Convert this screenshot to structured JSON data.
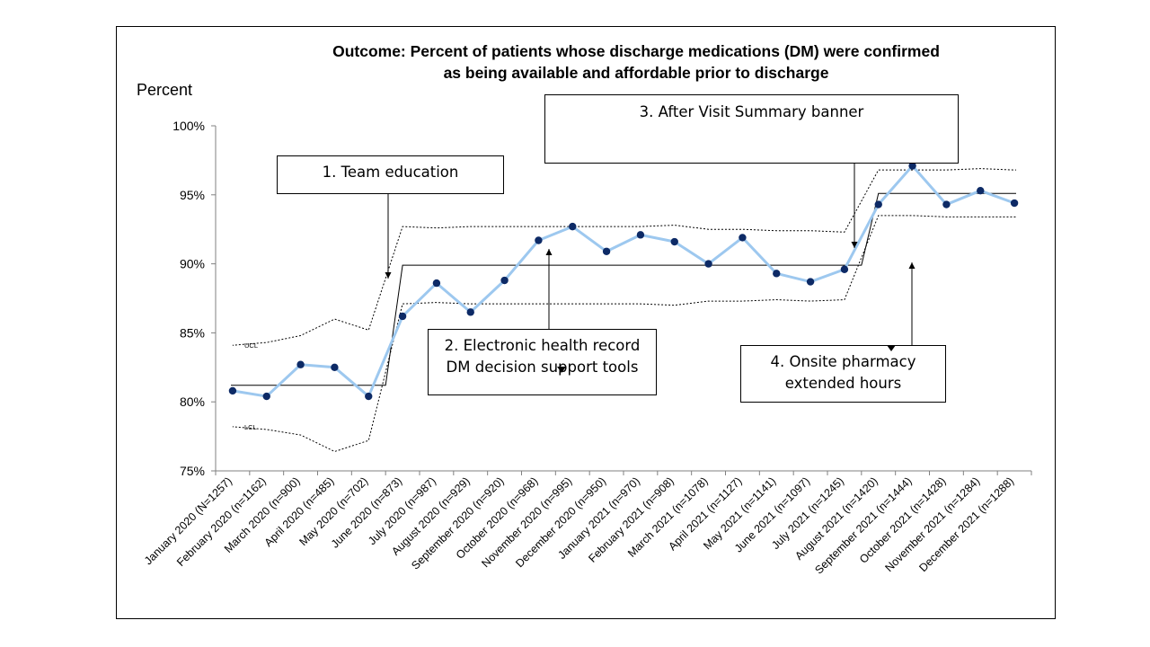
{
  "chart_data": {
    "type": "line",
    "title_lines": [
      "Outcome: Percent of patients whose discharge medications (DM) were confirmed",
      "as being available and affordable prior to discharge"
    ],
    "ylabel": "Percent",
    "xlabel": "",
    "ylim": [
      75,
      100
    ],
    "yticks": [
      "75%",
      "80%",
      "85%",
      "90%",
      "95%",
      "100%"
    ],
    "ytick_values": [
      75,
      80,
      85,
      90,
      95,
      100
    ],
    "grid": false,
    "categories": [
      "January 2020 (N=1257)",
      "February 2020 (n=1162)",
      "March 2020 (n=900)",
      "April 2020 (n=485)",
      "May 2020 (n=702)",
      "June 2020 (n=873)",
      "July 2020 (n=987)",
      "August 2020 (n=929)",
      "September 2020 (n=920)",
      "October 2020 (n=968)",
      "November 2020 (n=995)",
      "December 2020 (n=950)",
      "January 2021 (n=970)",
      "February 2021 (n=908)",
      "March 2021 (n=1078)",
      "April 2021 (n=1127)",
      "May 2021 (n=1141)",
      "June 2021 (n=1097)",
      "July 2021 (n=1245)",
      "August 2021 (n=1420)",
      "September 2021 (n=1444)",
      "October 2021 (n=1428)",
      "November 2021 (n=1284)",
      "December 2021 (n=1288)"
    ],
    "series": [
      {
        "values": [
          80.8,
          80.4,
          82.7,
          82.5,
          80.4,
          86.2,
          88.6,
          86.5,
          88.8,
          91.7,
          92.7,
          90.9,
          92.1,
          91.6,
          90.0,
          91.9,
          89.3,
          88.7,
          89.6,
          94.3,
          97.1,
          94.3,
          95.3,
          94.4
        ],
        "color": "#9dc8ef",
        "marker_color": "#0d2a66"
      }
    ],
    "center_line": [
      81.2,
      81.2,
      81.2,
      81.2,
      81.2,
      89.9,
      89.9,
      89.9,
      89.9,
      89.9,
      89.9,
      89.9,
      89.9,
      89.9,
      89.9,
      89.9,
      89.9,
      89.9,
      89.9,
      95.1,
      95.1,
      95.1,
      95.1,
      95.1
    ],
    "ucl": [
      84.1,
      84.3,
      84.8,
      86.0,
      85.2,
      92.7,
      92.6,
      92.7,
      92.7,
      92.7,
      92.7,
      92.7,
      92.7,
      92.8,
      92.5,
      92.5,
      92.4,
      92.4,
      92.3,
      96.8,
      96.8,
      96.8,
      96.9,
      96.8
    ],
    "lcl": [
      78.2,
      78.0,
      77.6,
      76.4,
      77.2,
      87.1,
      87.2,
      87.1,
      87.1,
      87.1,
      87.1,
      87.1,
      87.1,
      87.0,
      87.3,
      87.3,
      87.4,
      87.3,
      87.4,
      93.5,
      93.5,
      93.4,
      93.4,
      93.4
    ],
    "ucl_label": "UCL",
    "lcl_label": "LCL",
    "annotations": [
      {
        "lines": [
          "1. Team education"
        ]
      },
      {
        "lines": [
          "2. Electronic health record",
          "DM decision support tools"
        ]
      },
      {
        "lines": [
          "3. After Visit Summary banner"
        ]
      },
      {
        "lines": [
          "4. Onsite pharmacy",
          "extended hours"
        ]
      }
    ]
  }
}
